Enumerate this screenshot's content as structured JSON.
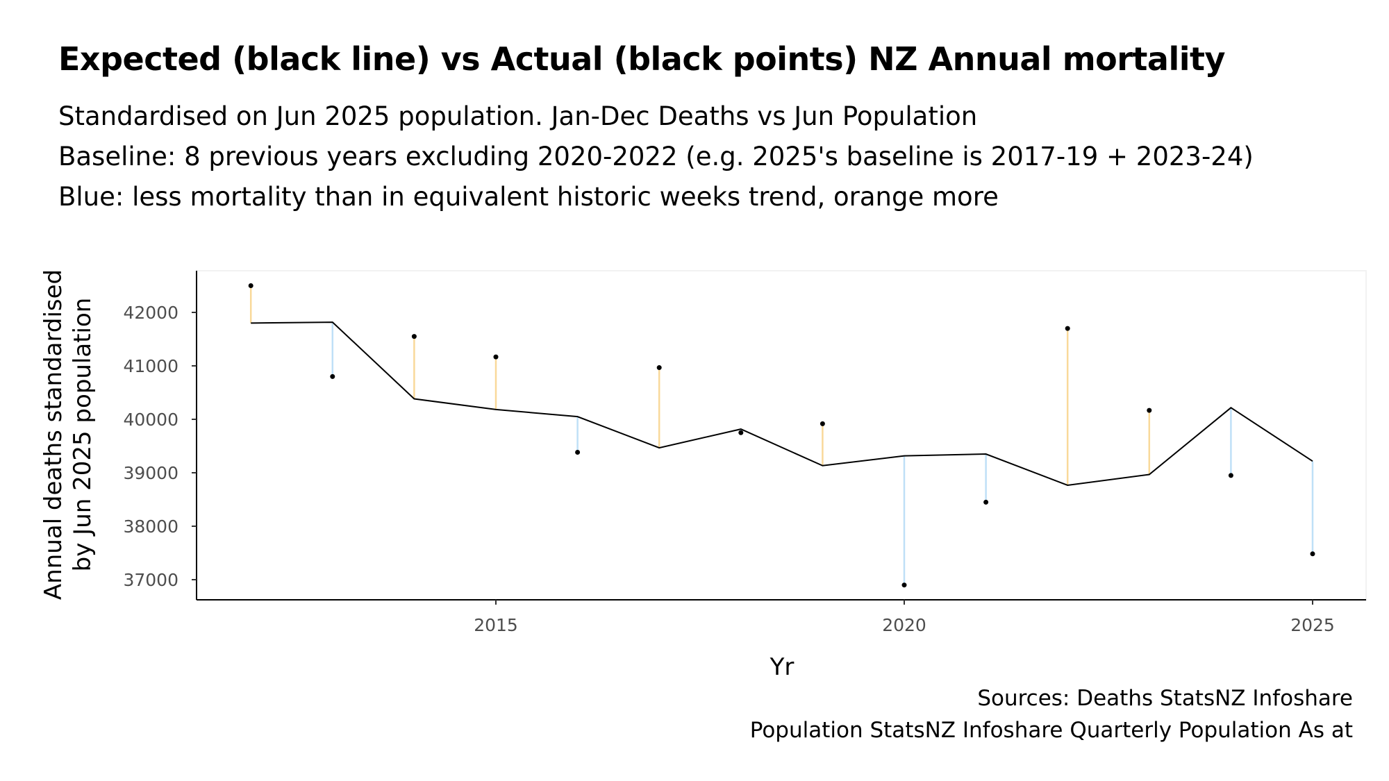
{
  "chart_data": {
    "type": "line",
    "title": "Expected (black line) vs Actual (black points) NZ Annual mortality",
    "subtitle": [
      "Standardised on Jun 2025 population. Jan-Dec Deaths vs Jun Population",
      "Baseline: 8 previous years excluding 2020-2022 (e.g. 2025's baseline is 2017-19 + 2023-24)",
      "Blue: less mortality than in equivalent historic weeks trend, orange more"
    ],
    "xlabel": "Yr",
    "ylabel": [
      "Annual deaths standardised",
      "by Jun 2025 population"
    ],
    "x": [
      2012,
      2013,
      2014,
      2015,
      2016,
      2017,
      2018,
      2019,
      2020,
      2021,
      2022,
      2023,
      2024,
      2025
    ],
    "series": [
      {
        "name": "Expected",
        "style": "line",
        "color": "#000000",
        "values": [
          41800,
          41817,
          40383,
          40183,
          40050,
          39467,
          39817,
          39133,
          39317,
          39350,
          38767,
          38967,
          40217,
          39217
        ]
      },
      {
        "name": "Actual",
        "style": "points",
        "color": "#000000",
        "values": [
          42500,
          40800,
          41550,
          41167,
          39383,
          40967,
          39750,
          39917,
          36900,
          38450,
          41700,
          40167,
          38950,
          37483
        ]
      }
    ],
    "colors": {
      "less": "#bfe0f7",
      "more": "#f9d99a"
    },
    "xticks": [
      "2015",
      "2020",
      "2025"
    ],
    "xtick_values": [
      2015,
      2020,
      2025
    ],
    "yticks": [
      "37000",
      "38000",
      "39000",
      "40000",
      "41000",
      "42000"
    ],
    "ytick_values": [
      37000,
      38000,
      39000,
      40000,
      41000,
      42000
    ],
    "xlim": [
      2011.3,
      2025.65
    ],
    "ylim": [
      36750,
      42800
    ],
    "grid": false,
    "sources": [
      "Sources: Deaths StatsNZ Infoshare",
      "Population StatsNZ Infoshare Quarterly Population As at"
    ]
  }
}
